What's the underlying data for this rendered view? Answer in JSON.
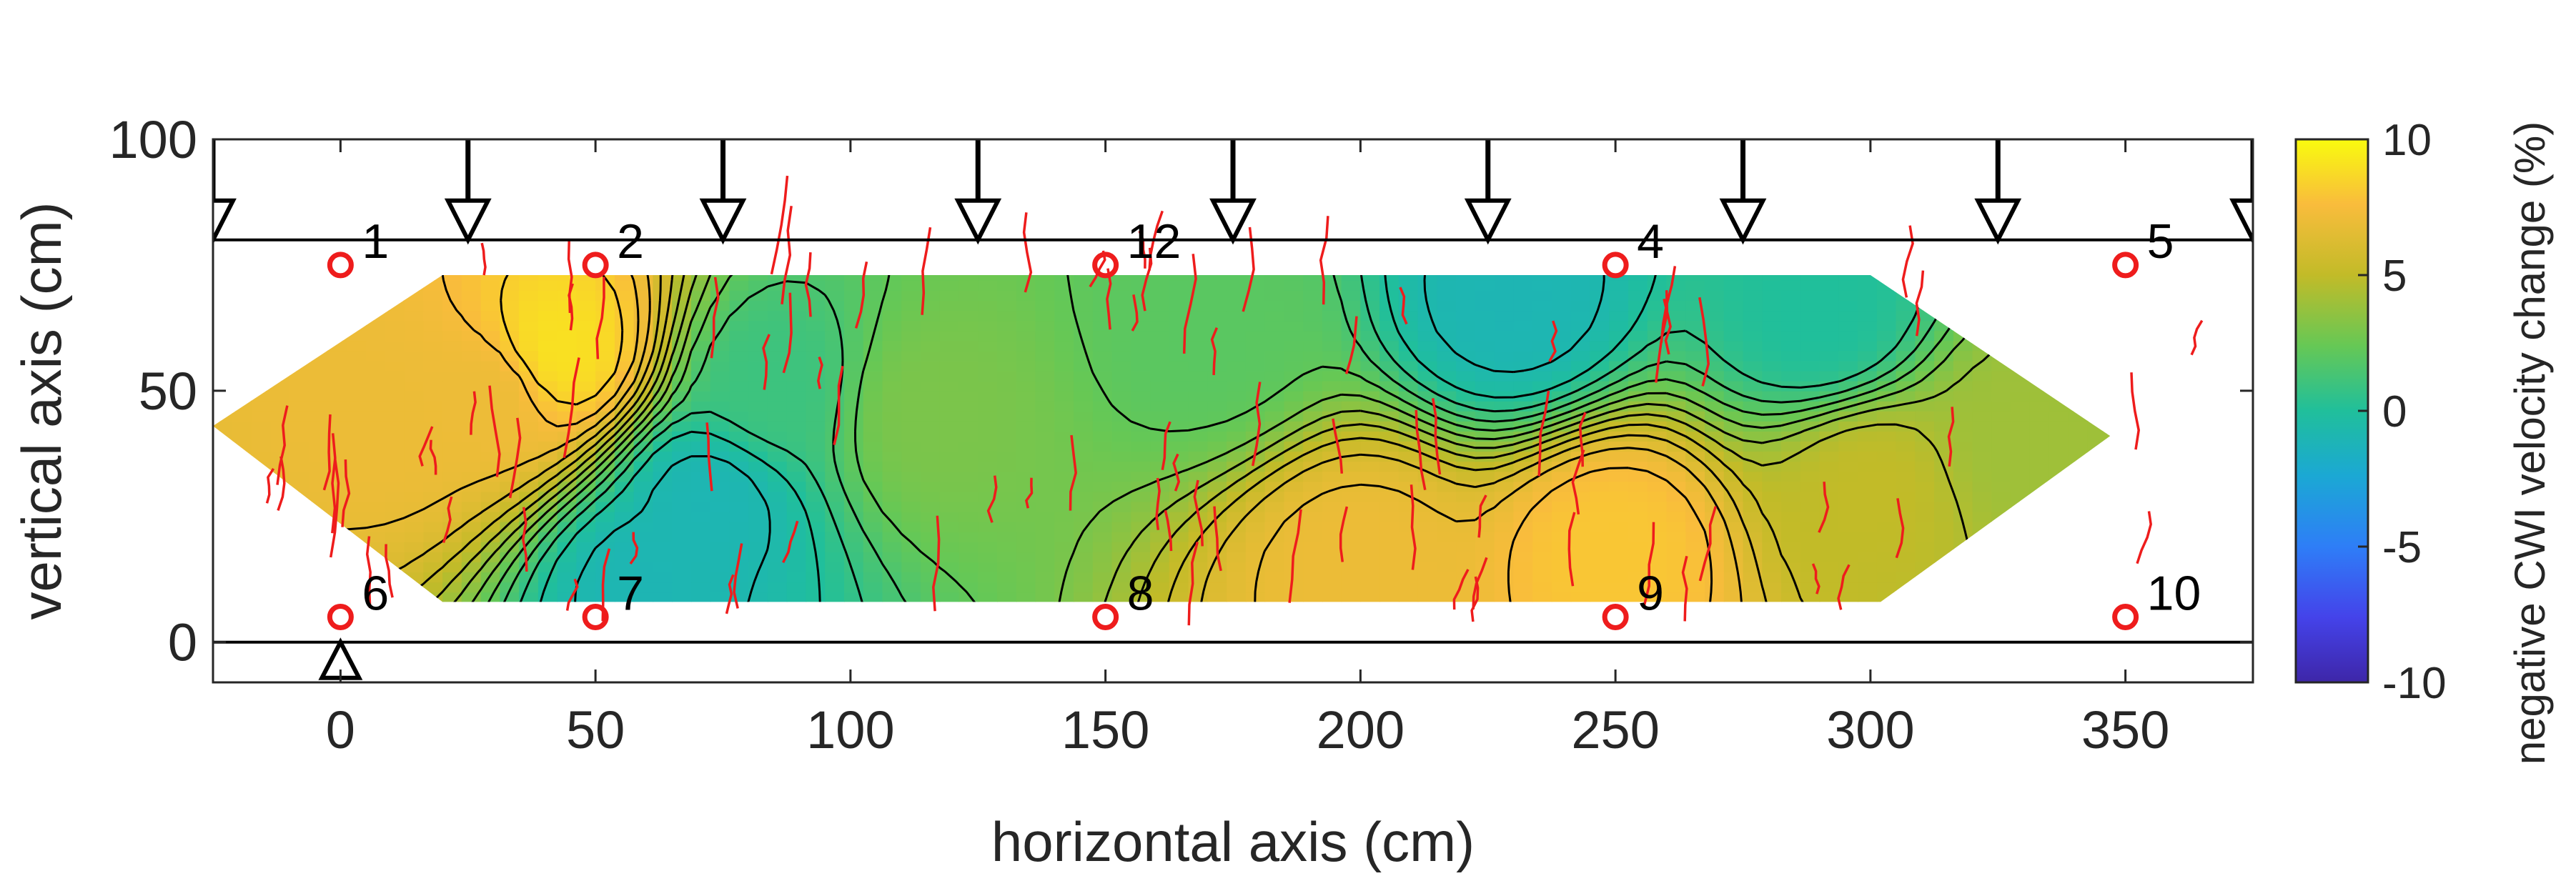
{
  "chart_data": {
    "type": "heatmap",
    "xlabel": "horizontal axis (cm)",
    "ylabel": "vertical axis (cm)",
    "xlim": [
      -25,
      375
    ],
    "ylim": [
      -8,
      100
    ],
    "xticks": [
      0,
      50,
      100,
      150,
      200,
      250,
      300,
      350
    ],
    "yticks": [
      0,
      50,
      100
    ],
    "grid": false,
    "colorbar": {
      "label": "negative CWI velocity change (%)",
      "range": [
        -10,
        10
      ],
      "ticks": [
        10,
        5,
        0,
        -5,
        -10
      ],
      "colormap": "parula"
    },
    "beam": {
      "top_y": 80,
      "bottom_y": 0
    },
    "load_points_x": [
      -25,
      25,
      75,
      125,
      175,
      225,
      275,
      325,
      375
    ],
    "support_x": [
      0
    ],
    "contour_region": [
      [
        -25,
        43
      ],
      [
        20,
        73
      ],
      [
        300,
        73
      ],
      [
        347,
        41
      ],
      [
        302,
        8
      ],
      [
        20,
        8
      ]
    ],
    "sensors": [
      {
        "label": "1",
        "x": 0,
        "y": 75
      },
      {
        "label": "2",
        "x": 50,
        "y": 75
      },
      {
        "label": "12",
        "x": 150,
        "y": 75
      },
      {
        "label": "4",
        "x": 250,
        "y": 75
      },
      {
        "label": "5",
        "x": 350,
        "y": 75
      },
      {
        "label": "6",
        "x": 0,
        "y": 5
      },
      {
        "label": "7",
        "x": 50,
        "y": 5
      },
      {
        "label": "8",
        "x": 150,
        "y": 5
      },
      {
        "label": "9",
        "x": 250,
        "y": 5
      },
      {
        "label": "10",
        "x": 350,
        "y": 5
      }
    ],
    "field_points": [
      {
        "x": 42,
        "y": 58,
        "value": 9
      },
      {
        "x": 30,
        "y": 50,
        "value": 7
      },
      {
        "x": 10,
        "y": 45,
        "value": 7
      },
      {
        "x": 72,
        "y": 28,
        "value": -1
      },
      {
        "x": 60,
        "y": 12,
        "value": -1
      },
      {
        "x": 85,
        "y": 50,
        "value": 1
      },
      {
        "x": 115,
        "y": 45,
        "value": 3
      },
      {
        "x": 170,
        "y": 62,
        "value": 2
      },
      {
        "x": 230,
        "y": 68,
        "value": -1
      },
      {
        "x": 290,
        "y": 65,
        "value": 0
      },
      {
        "x": 250,
        "y": 18,
        "value": 8
      },
      {
        "x": 200,
        "y": 15,
        "value": 7
      },
      {
        "x": 300,
        "y": 30,
        "value": 5
      },
      {
        "x": 330,
        "y": 40,
        "value": 4
      }
    ]
  }
}
